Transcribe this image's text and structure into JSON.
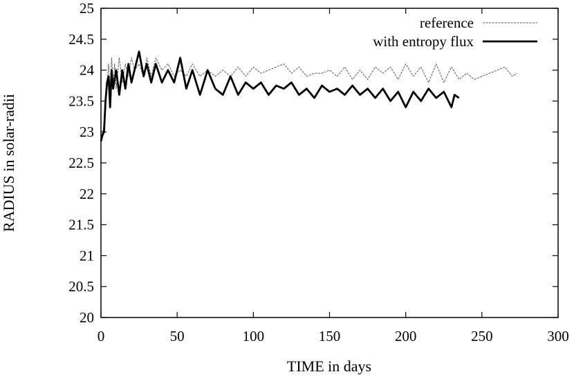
{
  "chart_data": {
    "type": "line",
    "title": "",
    "xlabel": "TIME in days",
    "ylabel": "RADIUS in solar-radii",
    "xlim": [
      0,
      300
    ],
    "ylim": [
      20,
      25
    ],
    "xticks": [
      "0",
      "50",
      "100",
      "150",
      "200",
      "250",
      "300"
    ],
    "yticks": [
      "20",
      "20.5",
      "21",
      "21.5",
      "22",
      "22.5",
      "23",
      "23.5",
      "24",
      "24.5",
      "25"
    ],
    "grid": false,
    "legend_position": "top-right",
    "series": [
      {
        "name": "reference",
        "style": "thin-dashed",
        "color": "#555555",
        "x": [
          0,
          1,
          2,
          3,
          4,
          5,
          6,
          7,
          8,
          9,
          10,
          12,
          14,
          16,
          18,
          20,
          22,
          25,
          28,
          30,
          33,
          36,
          40,
          44,
          48,
          52,
          56,
          60,
          65,
          70,
          75,
          80,
          85,
          90,
          95,
          100,
          105,
          110,
          115,
          120,
          125,
          130,
          135,
          140,
          145,
          150,
          155,
          160,
          165,
          170,
          175,
          180,
          185,
          190,
          195,
          200,
          205,
          210,
          215,
          220,
          225,
          230,
          235,
          240,
          245,
          250,
          255,
          260,
          265,
          270,
          273
        ],
        "y": [
          22.9,
          23.0,
          23.1,
          23.6,
          23.8,
          24.1,
          23.7,
          24.2,
          23.8,
          24.1,
          23.7,
          24.2,
          23.8,
          24.1,
          23.9,
          24.2,
          24.0,
          24.1,
          23.9,
          24.2,
          23.9,
          24.2,
          24.0,
          24.1,
          23.9,
          24.0,
          23.9,
          24.1,
          23.9,
          24.0,
          23.9,
          24.0,
          23.9,
          24.05,
          23.9,
          24.05,
          23.95,
          24.0,
          24.05,
          24.1,
          23.95,
          24.05,
          23.9,
          23.95,
          23.95,
          24.0,
          23.9,
          24.05,
          23.85,
          24.0,
          23.85,
          24.05,
          23.95,
          24.05,
          23.85,
          24.1,
          23.9,
          24.05,
          23.8,
          24.1,
          23.8,
          24.05,
          23.85,
          23.95,
          23.85,
          23.9,
          23.95,
          24.0,
          24.05,
          23.9,
          23.95
        ]
      },
      {
        "name": "with entropy flux",
        "style": "thick-solid",
        "color": "#000000",
        "x": [
          0,
          1,
          2,
          3,
          4,
          5,
          6,
          7,
          8,
          10,
          12,
          14,
          16,
          18,
          20,
          22,
          25,
          28,
          30,
          33,
          36,
          40,
          44,
          48,
          52,
          56,
          60,
          65,
          70,
          75,
          80,
          85,
          90,
          95,
          100,
          105,
          110,
          115,
          120,
          125,
          130,
          135,
          140,
          145,
          150,
          155,
          160,
          165,
          170,
          175,
          180,
          185,
          190,
          195,
          200,
          205,
          210,
          215,
          220,
          225,
          230,
          232,
          235
        ],
        "y": [
          22.85,
          22.95,
          23.0,
          23.5,
          23.8,
          23.9,
          23.4,
          24.0,
          23.7,
          24.0,
          23.6,
          24.0,
          23.7,
          24.1,
          23.8,
          24.0,
          24.3,
          23.9,
          24.1,
          23.8,
          24.1,
          23.8,
          24.0,
          23.8,
          24.2,
          23.7,
          24.0,
          23.6,
          24.0,
          23.7,
          23.6,
          23.9,
          23.6,
          23.8,
          23.7,
          23.8,
          23.6,
          23.75,
          23.7,
          23.8,
          23.6,
          23.7,
          23.55,
          23.75,
          23.65,
          23.7,
          23.6,
          23.75,
          23.6,
          23.7,
          23.55,
          23.7,
          23.5,
          23.65,
          23.4,
          23.65,
          23.5,
          23.7,
          23.55,
          23.65,
          23.4,
          23.6,
          23.55
        ]
      }
    ]
  }
}
